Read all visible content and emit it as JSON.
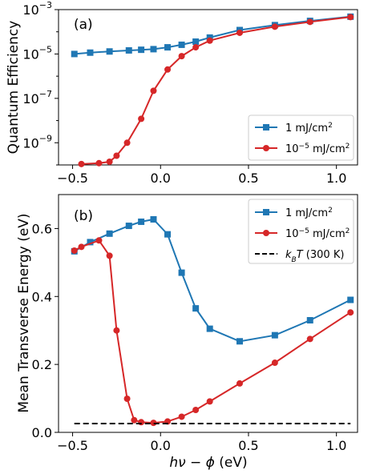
{
  "chart_data": [
    {
      "type": "line",
      "panel_label": "(a)",
      "ylabel": "Quantum Efficiency",
      "yscale": "log",
      "xlim": [
        -0.58,
        1.12
      ],
      "ylim_exp": [
        -10,
        -3
      ],
      "x_ticks": [
        -0.5,
        0.0,
        0.5,
        1.0
      ],
      "x_tick_labels": [
        "−0.5",
        "0.0",
        "0.5",
        "1.0"
      ],
      "y_tick_exps": [
        -9,
        -7,
        -5,
        -3
      ],
      "y_tick_labels": [
        "10",
        "10",
        "10",
        "10"
      ],
      "y_tick_sups": [
        "−9",
        "−7",
        "−5",
        "−3"
      ],
      "legend_position": "lower-right",
      "series": [
        {
          "name": "1 mJ/cm",
          "name_sup": "2",
          "color": "#1f77b4",
          "marker": "square",
          "x": [
            -0.49,
            -0.4,
            -0.29,
            -0.18,
            -0.11,
            -0.04,
            0.04,
            0.12,
            0.2,
            0.28,
            0.45,
            0.65,
            0.85,
            1.08
          ],
          "y": [
            1e-05,
            1.15e-05,
            1.3e-05,
            1.45e-05,
            1.55e-05,
            1.65e-05,
            2e-05,
            2.6e-05,
            3.6e-05,
            5.5e-05,
            0.00012,
            0.0002,
            0.00031,
            0.00048
          ]
        },
        {
          "name": "10",
          "name_sup": "−5",
          "name_suffix": " mJ/cm",
          "name_sup2": "2",
          "color": "#d62728",
          "marker": "circle",
          "x": [
            -0.45,
            -0.35,
            -0.29,
            -0.25,
            -0.19,
            -0.11,
            -0.04,
            0.04,
            0.12,
            0.2,
            0.28,
            0.45,
            0.65,
            0.85,
            1.08
          ],
          "y": [
            1.1e-10,
            1.2e-10,
            1.4e-10,
            2.6e-10,
            1e-09,
            1.2e-08,
            2.2e-07,
            2e-06,
            8e-06,
            2e-05,
            4e-05,
            9e-05,
            0.00017,
            0.00028,
            0.00046
          ]
        }
      ]
    },
    {
      "type": "line",
      "panel_label": "(b)",
      "ylabel": "Mean Transverse Energy (eV)",
      "xlabel_italic": "hν − ϕ",
      "xlabel_unit": " (eV)",
      "xlim": [
        -0.58,
        1.12
      ],
      "ylim": [
        0.0,
        0.7
      ],
      "x_ticks": [
        -0.5,
        0.0,
        0.5,
        1.0
      ],
      "x_tick_labels": [
        "−0.5",
        "0.0",
        "0.5",
        "1.0"
      ],
      "y_ticks": [
        0.0,
        0.2,
        0.4,
        0.6
      ],
      "y_tick_labels": [
        "0.0",
        "0.2",
        "0.4",
        "0.6"
      ],
      "legend_position": "upper-right",
      "series": [
        {
          "name": "1 mJ/cm",
          "name_sup": "2",
          "color": "#1f77b4",
          "marker": "square",
          "x": [
            -0.49,
            -0.4,
            -0.29,
            -0.18,
            -0.11,
            -0.04,
            0.04,
            0.12,
            0.2,
            0.28,
            0.45,
            0.65,
            0.85,
            1.08
          ],
          "y": [
            0.533,
            0.56,
            0.585,
            0.608,
            0.62,
            0.627,
            0.583,
            0.47,
            0.365,
            0.305,
            0.268,
            0.286,
            0.33,
            0.39
          ]
        },
        {
          "name": "10",
          "name_sup": "−5",
          "name_suffix": " mJ/cm",
          "name_sup2": "2",
          "color": "#d62728",
          "marker": "circle",
          "x": [
            -0.49,
            -0.45,
            -0.35,
            -0.29,
            -0.25,
            -0.19,
            -0.15,
            -0.11,
            -0.04,
            0.04,
            0.12,
            0.2,
            0.28,
            0.45,
            0.65,
            0.85,
            1.08
          ],
          "y": [
            0.535,
            0.546,
            0.565,
            0.52,
            0.3,
            0.099,
            0.036,
            0.03,
            0.028,
            0.032,
            0.046,
            0.066,
            0.091,
            0.144,
            0.205,
            0.275,
            0.353
          ]
        },
        {
          "name_italic": "k",
          "name_sub": "B",
          "name_italic2": "T",
          "name_suffix": " (300 K)",
          "color": "#000000",
          "marker": "none",
          "dashed": true,
          "x": [
            -0.49,
            1.08
          ],
          "y": [
            0.026,
            0.026
          ]
        }
      ]
    }
  ]
}
